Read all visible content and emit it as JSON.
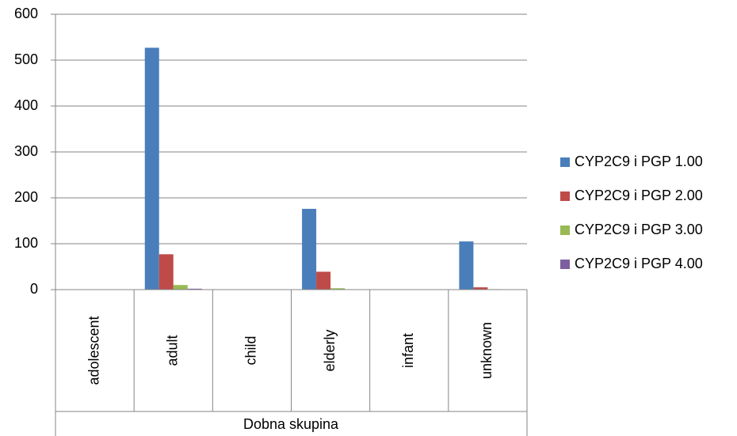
{
  "chart_data": {
    "type": "bar",
    "x_label": "Dobna skupina",
    "categories": [
      "adolescent",
      "adult",
      "child",
      "elderly",
      "infant",
      "unknown"
    ],
    "series": [
      {
        "name": "CYP2C9 i PGP 1.00",
        "color": "#4a7ebb",
        "values": [
          0,
          527,
          0,
          176,
          0,
          105
        ]
      },
      {
        "name": "CYP2C9 i PGP 2.00",
        "color": "#be4b48",
        "values": [
          0,
          77,
          0,
          39,
          0,
          5
        ]
      },
      {
        "name": "CYP2C9 i PGP 3.00",
        "color": "#98b954",
        "values": [
          0,
          10,
          0,
          3,
          0,
          1
        ]
      },
      {
        "name": "CYP2C9 i PGP 4.00",
        "color": "#7d5fa0",
        "values": [
          0,
          2,
          0,
          0,
          0,
          0
        ]
      }
    ],
    "ylim": [
      0,
      600
    ],
    "yticks": [
      0,
      100,
      200,
      300,
      400,
      500,
      600
    ],
    "grid": true,
    "legend": "right"
  }
}
